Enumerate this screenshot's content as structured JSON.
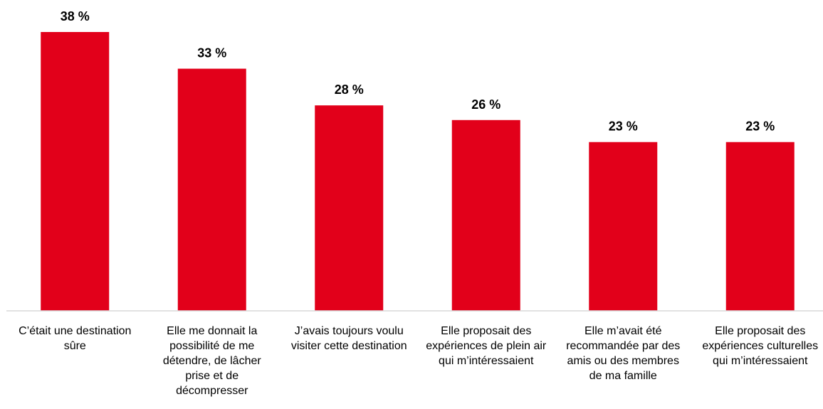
{
  "chart_data": {
    "type": "bar",
    "categories": [
      "C’était une destination sûre",
      "Elle me donnait la possibilité de me détendre, de lâcher prise et de décompresser",
      "J’avais toujours voulu visiter cette destination",
      "Elle proposait des expériences de plein air qui m’intéressaient",
      "Elle m’avait été recommandée par des amis ou des membres de ma famille",
      "Elle proposait des expériences culturelles qui m’intéressaient"
    ],
    "values": [
      38,
      33,
      28,
      26,
      23,
      23
    ],
    "value_labels": [
      "38 %",
      "33 %",
      "28 %",
      "26 %",
      "23 %",
      "23 %"
    ],
    "color": "#e2001a"
  }
}
